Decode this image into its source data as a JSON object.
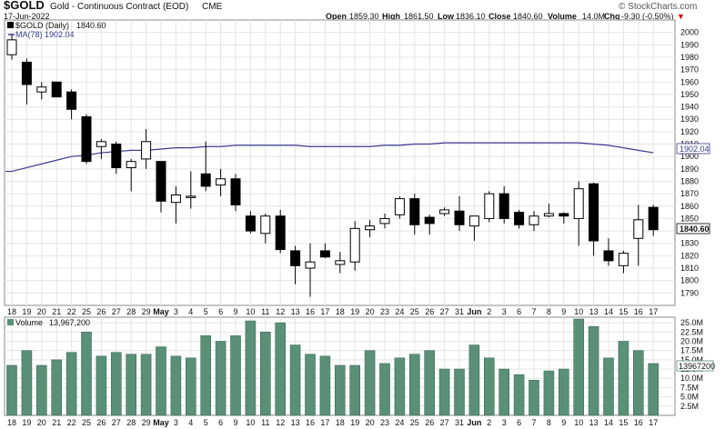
{
  "header": {
    "symbol": "$GOLD",
    "description": "Gold - Continuous Contract (EOD)",
    "exchange": "CME",
    "watermark": "© StockCharts.com",
    "date": "17-Jun-2022",
    "ohlc": {
      "open_label": "Open",
      "open": "1859.30",
      "high_label": "High",
      "high": "1861.50",
      "low_label": "Low",
      "low": "1836.10",
      "close_label": "Close",
      "close": "1840.60",
      "volume_label": "Volume",
      "volume": "14.0M",
      "chg_label": "Chg",
      "chg": "-9.30 (-0.50%)",
      "chg_arrow": "▼"
    }
  },
  "colors": {
    "up_fill": "#ffffff",
    "down_fill": "#000000",
    "ma_line": "#3b3b8f",
    "volume_bar": "#5a8f78",
    "grid": "#e4e4e4",
    "red": "#cc0000"
  },
  "chart_data": [
    {
      "type": "candlestick",
      "legend": [
        {
          "name": "$GOLD (Daily)",
          "value": "1840.60"
        },
        {
          "name": "MA(78)",
          "value": "1902.04"
        }
      ],
      "ylim": [
        1780,
        2010
      ],
      "y_ticks": [
        1790,
        1800,
        1810,
        1820,
        1830,
        1840,
        1850,
        1860,
        1870,
        1880,
        1890,
        1900,
        1910,
        1920,
        1930,
        1940,
        1950,
        1960,
        1970,
        1980,
        1990,
        2000
      ],
      "price_labels": {
        "last": "1840.60",
        "ma": "1902.04"
      },
      "x_labels": [
        "18",
        "19",
        "20",
        "21",
        "22",
        "25",
        "26",
        "27",
        "28",
        "29",
        "May",
        "3",
        "4",
        "5",
        "6",
        "9",
        "10",
        "11",
        "12",
        "13",
        "16",
        "17",
        "18",
        "19",
        "20",
        "23",
        "24",
        "25",
        "26",
        "27",
        "31",
        "Jun",
        "2",
        "3",
        "6",
        "7",
        "8",
        "9",
        "10",
        "13",
        "14",
        "15",
        "16",
        "17"
      ],
      "bold_labels": [
        "May",
        "Jun"
      ],
      "candles": [
        {
          "o": 1982,
          "h": 1998,
          "l": 1978,
          "c": 1994
        },
        {
          "o": 1976,
          "h": 1979,
          "l": 1942,
          "c": 1958
        },
        {
          "o": 1952,
          "h": 1960,
          "l": 1946,
          "c": 1956
        },
        {
          "o": 1960,
          "h": 1960,
          "l": 1948,
          "c": 1948
        },
        {
          "o": 1952,
          "h": 1954,
          "l": 1930,
          "c": 1938
        },
        {
          "o": 1932,
          "h": 1934,
          "l": 1894,
          "c": 1896
        },
        {
          "o": 1908,
          "h": 1914,
          "l": 1898,
          "c": 1912
        },
        {
          "o": 1910,
          "h": 1912,
          "l": 1886,
          "c": 1891
        },
        {
          "o": 1891,
          "h": 1898,
          "l": 1872,
          "c": 1896
        },
        {
          "o": 1898,
          "h": 1922,
          "l": 1890,
          "c": 1912
        },
        {
          "o": 1896,
          "h": 1896,
          "l": 1855,
          "c": 1864
        },
        {
          "o": 1863,
          "h": 1876,
          "l": 1846,
          "c": 1869
        },
        {
          "o": 1868,
          "h": 1888,
          "l": 1858,
          "c": 1868
        },
        {
          "o": 1886,
          "h": 1912,
          "l": 1872,
          "c": 1876
        },
        {
          "o": 1877,
          "h": 1890,
          "l": 1868,
          "c": 1882
        },
        {
          "o": 1882,
          "h": 1886,
          "l": 1856,
          "c": 1861
        },
        {
          "o": 1852,
          "h": 1856,
          "l": 1838,
          "c": 1840
        },
        {
          "o": 1838,
          "h": 1854,
          "l": 1830,
          "c": 1852
        },
        {
          "o": 1852,
          "h": 1857,
          "l": 1822,
          "c": 1825
        },
        {
          "o": 1824,
          "h": 1828,
          "l": 1797,
          "c": 1812
        },
        {
          "o": 1810,
          "h": 1830,
          "l": 1787,
          "c": 1815
        },
        {
          "o": 1824,
          "h": 1830,
          "l": 1818,
          "c": 1819
        },
        {
          "o": 1813,
          "h": 1823,
          "l": 1806,
          "c": 1816
        },
        {
          "o": 1815,
          "h": 1848,
          "l": 1808,
          "c": 1842
        },
        {
          "o": 1841,
          "h": 1849,
          "l": 1835,
          "c": 1844
        },
        {
          "o": 1846,
          "h": 1854,
          "l": 1842,
          "c": 1850
        },
        {
          "o": 1853,
          "h": 1868,
          "l": 1850,
          "c": 1866
        },
        {
          "o": 1866,
          "h": 1870,
          "l": 1837,
          "c": 1845
        },
        {
          "o": 1851,
          "h": 1853,
          "l": 1837,
          "c": 1846
        },
        {
          "o": 1854,
          "h": 1859,
          "l": 1852,
          "c": 1857
        },
        {
          "o": 1856,
          "h": 1868,
          "l": 1840,
          "c": 1845
        },
        {
          "o": 1844,
          "h": 1852,
          "l": 1832,
          "c": 1852
        },
        {
          "o": 1850,
          "h": 1872,
          "l": 1847,
          "c": 1870
        },
        {
          "o": 1870,
          "h": 1876,
          "l": 1846,
          "c": 1850
        },
        {
          "o": 1855,
          "h": 1857,
          "l": 1842,
          "c": 1845
        },
        {
          "o": 1845,
          "h": 1856,
          "l": 1840,
          "c": 1852
        },
        {
          "o": 1852,
          "h": 1862,
          "l": 1851,
          "c": 1854
        },
        {
          "o": 1854,
          "h": 1855,
          "l": 1846,
          "c": 1852
        },
        {
          "o": 1850,
          "h": 1880,
          "l": 1828,
          "c": 1874
        },
        {
          "o": 1878,
          "h": 1879,
          "l": 1820,
          "c": 1832
        },
        {
          "o": 1824,
          "h": 1834,
          "l": 1812,
          "c": 1816
        },
        {
          "o": 1812,
          "h": 1824,
          "l": 1806,
          "c": 1822
        },
        {
          "o": 1834,
          "h": 1861,
          "l": 1812,
          "c": 1849
        },
        {
          "o": 1859,
          "h": 1861,
          "l": 1836,
          "c": 1841
        }
      ],
      "ma_values": [
        1888,
        1891,
        1894,
        1897,
        1900,
        1901,
        1903,
        1904,
        1905,
        1905,
        1906,
        1907,
        1907,
        1908,
        1908,
        1909,
        1909,
        1909,
        1909,
        1909,
        1908,
        1908,
        1908,
        1908,
        1908,
        1909,
        1909,
        1910,
        1910,
        1911,
        1911,
        1911,
        1911,
        1911,
        1911,
        1911,
        1911,
        1911,
        1911,
        1910,
        1909,
        1907,
        1905,
        1903
      ]
    },
    {
      "type": "bar",
      "title": "Volume",
      "title_value": "13,967,200",
      "ylim": [
        0,
        26500000
      ],
      "y_ticks": [
        "2.5M",
        "5.0M",
        "7.5M",
        "10.0M",
        "12.5M",
        "15.0M",
        "17.5M",
        "20.0M",
        "22.5M",
        "25.0M"
      ],
      "last_label": "13967200",
      "values": [
        13.5,
        17.5,
        13.5,
        15,
        17,
        22.5,
        16,
        17,
        16.5,
        16.5,
        18.5,
        16,
        15.5,
        21.5,
        20,
        21.5,
        25.5,
        22.5,
        25,
        19,
        16.5,
        16,
        13.5,
        13.5,
        17.5,
        14,
        15.5,
        16.5,
        17.5,
        12.5,
        12.5,
        19,
        15.5,
        12.5,
        11,
        9.5,
        12,
        12.5,
        26,
        24,
        15.5,
        20,
        17.5,
        14
      ]
    }
  ]
}
